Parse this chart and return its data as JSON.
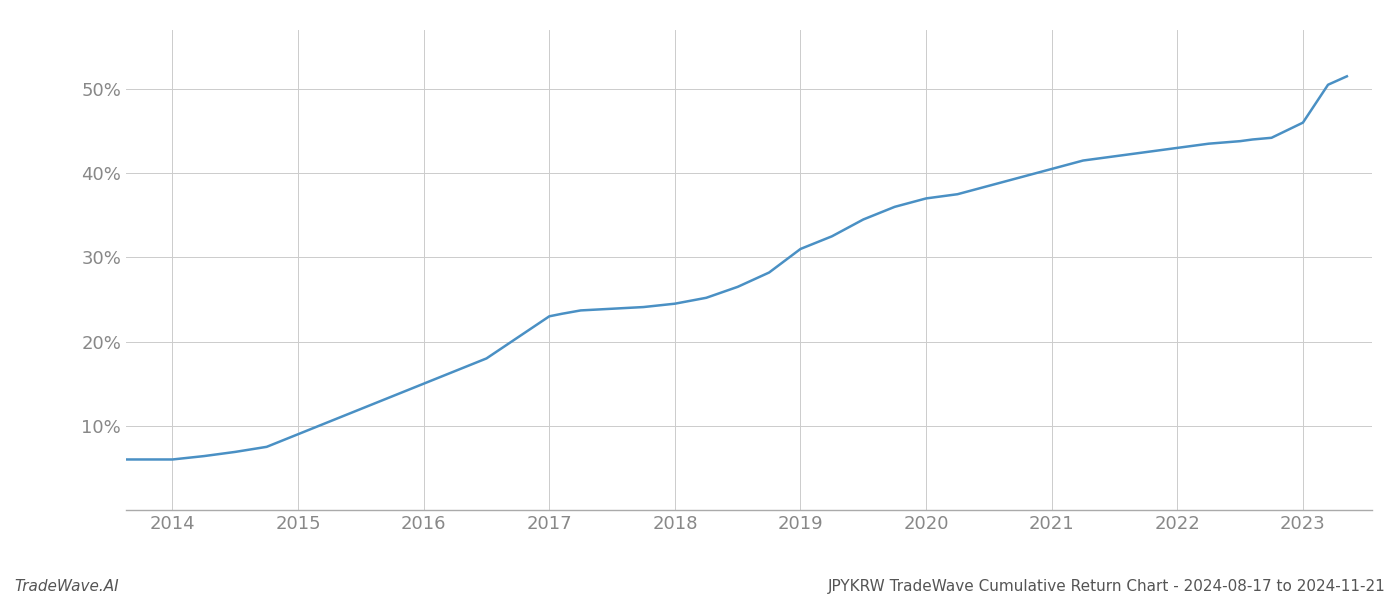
{
  "line_color": "#4a90c4",
  "line_width": 1.8,
  "background_color": "#ffffff",
  "grid_color": "#cccccc",
  "x_years": [
    2013.63,
    2013.75,
    2014.0,
    2014.25,
    2014.5,
    2014.75,
    2015.0,
    2015.25,
    2015.5,
    2015.75,
    2016.0,
    2016.25,
    2016.5,
    2016.75,
    2017.0,
    2017.1,
    2017.25,
    2017.5,
    2017.75,
    2018.0,
    2018.25,
    2018.5,
    2018.75,
    2019.0,
    2019.25,
    2019.5,
    2019.75,
    2020.0,
    2020.25,
    2020.5,
    2020.75,
    2021.0,
    2021.25,
    2021.5,
    2021.75,
    2022.0,
    2022.25,
    2022.5,
    2022.6,
    2022.75,
    2023.0,
    2023.2,
    2023.35
  ],
  "y_values": [
    6.0,
    6.0,
    6.0,
    6.4,
    6.9,
    7.5,
    9.0,
    10.5,
    12.0,
    13.5,
    15.0,
    16.5,
    18.0,
    20.5,
    23.0,
    23.3,
    23.7,
    23.9,
    24.1,
    24.5,
    25.2,
    26.5,
    28.2,
    31.0,
    32.5,
    34.5,
    36.0,
    37.0,
    37.5,
    38.5,
    39.5,
    40.5,
    41.5,
    42.0,
    42.5,
    43.0,
    43.5,
    43.8,
    44.0,
    44.2,
    46.0,
    50.5,
    51.5
  ],
  "ytick_values": [
    10,
    20,
    30,
    40,
    50
  ],
  "xtick_values": [
    2014,
    2015,
    2016,
    2017,
    2018,
    2019,
    2020,
    2021,
    2022,
    2023
  ],
  "ylim": [
    0,
    57
  ],
  "xlim": [
    2013.63,
    2023.55
  ],
  "footer_left": "TradeWave.AI",
  "footer_right": "JPYKRW TradeWave Cumulative Return Chart - 2024-08-17 to 2024-11-21",
  "footer_fontsize": 11,
  "tick_fontsize": 13,
  "footer_color": "#555555",
  "tick_color": "#888888"
}
